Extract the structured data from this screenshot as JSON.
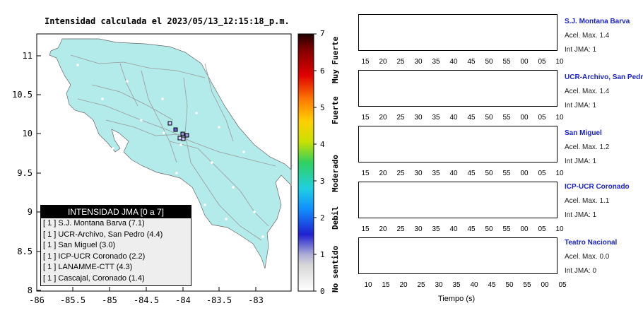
{
  "map": {
    "title": "Intensidad calculada el 2023/05/13_12:15:18_p.m.",
    "x_ticks": [
      "-86",
      "-85.5",
      "-85",
      "-84.5",
      "-84",
      "-83.5",
      "-83"
    ],
    "y_ticks": [
      "11",
      "10.5",
      "10",
      "9.5",
      "9",
      "8.5",
      "8"
    ],
    "land_color": "#b3eaea",
    "legend": {
      "header": "INTENSIDAD JMA [0 a 7]",
      "rows": [
        "[ 1 ]  S.J. Montana Barva (7.1)",
        "[ 1 ]  UCR-Archivo, San Pedro (4.4)",
        "[ 1 ]  San Miguel (3.0)",
        "[ 1 ]  ICP-UCR Coronado (2.2)",
        "[ 1 ]  LANAMME-CTT (4.3)",
        "[ 1 ]  Cascajal, Coronado (1.4)"
      ]
    }
  },
  "colorbar": {
    "ticks": [
      "7",
      "6",
      "5",
      "4",
      "3",
      "2",
      "1",
      "0"
    ],
    "labels": [
      "Muy Fuerte",
      "Fuerte",
      "Moderado",
      "Debil",
      "No sentido"
    ]
  },
  "traces": {
    "panels": [
      {
        "name": "S.J. Montana Barva",
        "accel": "Acel. Max. 1.4",
        "jma": "Int JMA: 1",
        "color": "#1a6b1a",
        "ticks": [
          "15",
          "20",
          "25",
          "30",
          "35",
          "40",
          "45",
          "50",
          "55",
          "00",
          "05",
          "10"
        ]
      },
      {
        "name": "UCR-Archivo, San Pedro",
        "accel": "Acel. Max. 1.4",
        "jma": "Int JMA: 1",
        "color": "#1a6b1a",
        "ticks": [
          "15",
          "20",
          "25",
          "30",
          "35",
          "40",
          "45",
          "50",
          "55",
          "00",
          "05",
          "10"
        ]
      },
      {
        "name": "San Miguel",
        "accel": "Acel. Max. 1.2",
        "jma": "Int JMA: 1",
        "color": "#1a6b1a",
        "ticks": [
          "15",
          "20",
          "25",
          "30",
          "35",
          "40",
          "45",
          "50",
          "55",
          "00",
          "05",
          "10"
        ]
      },
      {
        "name": "ICP-UCR Coronado",
        "accel": "Acel. Max. 1.1",
        "jma": "Int JMA: 1",
        "color": "#1a6b1a",
        "ticks": [
          "15",
          "20",
          "25",
          "30",
          "35",
          "40",
          "45",
          "50",
          "55",
          "00",
          "05",
          "10"
        ]
      },
      {
        "name": "Teatro Nacional",
        "accel": "Acel. Max. 0.0",
        "jma": "Int JMA: 0",
        "color": "#f2a900",
        "ticks": [
          "10",
          "15",
          "20",
          "25",
          "30",
          "35",
          "40",
          "45",
          "50",
          "55",
          "00",
          "05"
        ]
      }
    ],
    "xlabel": "Tiempo (s)"
  }
}
